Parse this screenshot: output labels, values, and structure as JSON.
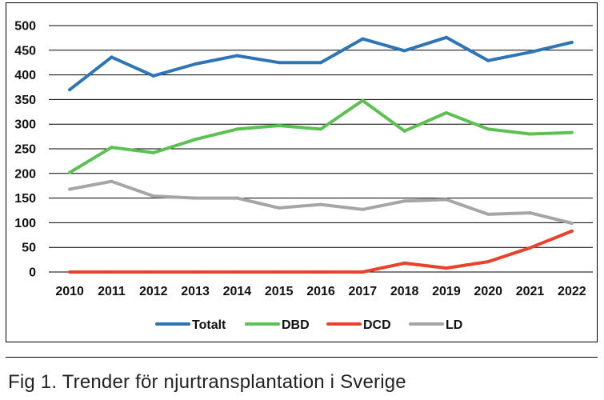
{
  "caption": "Fig 1. Trender för njurtransplantation i Sverige",
  "chart_data": {
    "type": "line",
    "title": "",
    "xlabel": "",
    "ylabel": "",
    "x": [
      "2010",
      "2011",
      "2012",
      "2013",
      "2014",
      "2015",
      "2016",
      "2017",
      "2018",
      "2019",
      "2020",
      "2021",
      "2022"
    ],
    "ylim": [
      0,
      500
    ],
    "yticks": [
      0,
      50,
      100,
      150,
      200,
      250,
      300,
      350,
      400,
      450,
      500
    ],
    "grid": true,
    "legend_position": "bottom",
    "series": [
      {
        "name": "Totalt",
        "color": "#2e75b6",
        "values": [
          370,
          436,
          398,
          422,
          439,
          425,
          425,
          473,
          449,
          476,
          429,
          446,
          466
        ]
      },
      {
        "name": "DBD",
        "color": "#5cc152",
        "values": [
          202,
          253,
          242,
          269,
          290,
          297,
          290,
          348,
          286,
          323,
          290,
          280,
          283
        ]
      },
      {
        "name": "DCD",
        "color": "#e8412c",
        "values": [
          0,
          0,
          0,
          0,
          0,
          0,
          0,
          0,
          18,
          8,
          21,
          49,
          83
        ]
      },
      {
        "name": "LD",
        "color": "#a5a5a5",
        "values": [
          168,
          184,
          154,
          150,
          150,
          130,
          137,
          127,
          144,
          147,
          117,
          120,
          99
        ]
      }
    ]
  }
}
